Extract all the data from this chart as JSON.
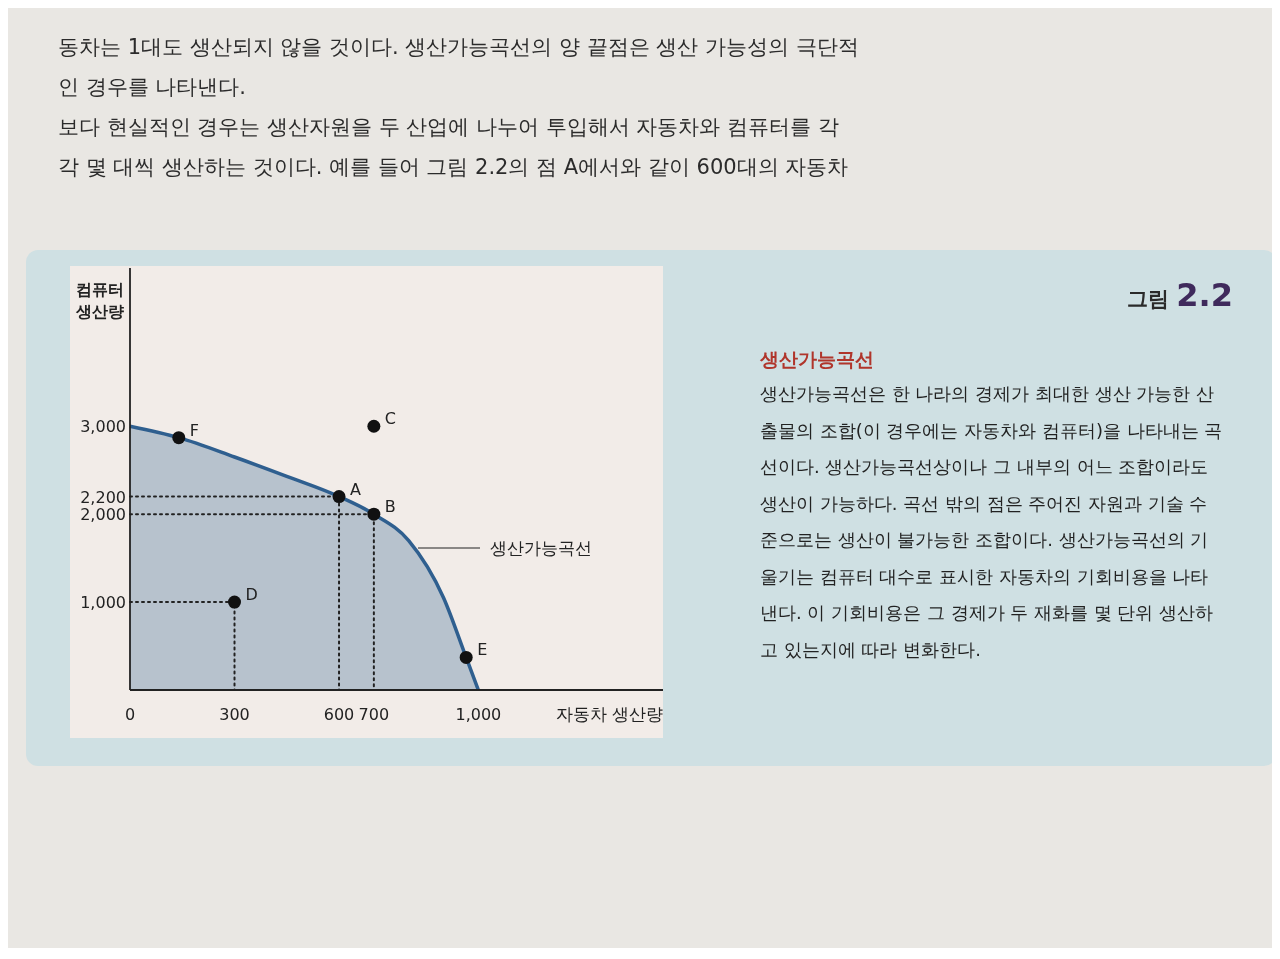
{
  "chart_data": {
    "type": "area",
    "title": "그림 2.2",
    "subtitle": "생산가능곡선",
    "xlabel": "자동차 생산량",
    "ylabel": "컴퓨터\n생산량",
    "xlim": [
      0,
      1530
    ],
    "ylim": [
      0,
      4800
    ],
    "xticks": [
      0,
      300,
      600,
      700,
      {
        "value": 1000,
        "label": "1,000"
      }
    ],
    "yticks": [
      {
        "value": 1000,
        "label": "1,000"
      },
      {
        "value": 2000,
        "label": "2,000"
      },
      {
        "value": 2200,
        "label": "2,200"
      },
      {
        "value": 3000,
        "label": "3,000"
      }
    ],
    "series": [
      {
        "color": "#2f5f8f",
        "x": [
          0,
          140,
          300,
          450,
          600,
          700,
          800,
          900,
          965,
          1000
        ],
        "values": [
          3000,
          2870,
          2650,
          2430,
          2200,
          2000,
          1700,
          1050,
          370,
          0
        ]
      },
      {
        "type": "line",
        "line_style": "dotted",
        "color": "#222222",
        "x": [
          0,
          600,
          600
        ],
        "values": [
          2200,
          2200,
          0
        ]
      },
      {
        "type": "line",
        "line_style": "dotted",
        "color": "#222222",
        "x": [
          0,
          700,
          700
        ],
        "values": [
          2000,
          2000,
          0
        ]
      },
      {
        "type": "line",
        "line_style": "dotted",
        "color": "#222222",
        "x": [
          0,
          300,
          300
        ],
        "values": [
          1000,
          1000,
          0
        ]
      },
      {
        "type": "scatter",
        "marker": "circle",
        "color": "#111111",
        "x": [
          140,
          600,
          700,
          700,
          300,
          965
        ],
        "values": [
          2870,
          2200,
          2000,
          3000,
          1000,
          370
        ]
      }
    ],
    "annotations": [
      "동차는 1대도 생산되지 않을 것이다. 생산가능곡선의 양 끝점은 생산 가능성의 극단적\n인 경우를 나타낸다.\n보다 현실적인 경우는 생산자원을 두 산업에 나누어 투입해서 자동차와 컴퓨터를 각\n각 몇 대씩 생산하는 것이다. 예를 들어 그림 2.2의 점 A에서와 같이 600대의 자동차",
      "생산가능곡선은 한 나라의 경제가 최대한 생산 가능한 산\n출물의 조합(이 경우에는 자동차와 컴퓨터)을 나타내는 곡\n선이다. 생산가능곡선상이나 그 내부의 어느 조합이라도\n생산이 가능하다. 곡선 밖의 점은 주어진 자원과 기술 수\n준으로는 생산이 불가능한 조합이다. 생산가능곡선의 기\n울기는 컴퓨터 대수로 표시한 자동차의 기회비용을 나타\n낸다. 이 기회비용은 그 경제가 두 재화를 몇 단위 생산하\n고 있는지에 따라 변화한다.",
      "생산가능곡선",
      {
        "text": "F",
        "x": 140,
        "y": 2870
      },
      {
        "text": "A",
        "x": 600,
        "y": 2200
      },
      {
        "text": "B",
        "x": 700,
        "y": 2000
      },
      {
        "text": "C",
        "x": 700,
        "y": 3000
      },
      {
        "text": "D",
        "x": 300,
        "y": 1000
      },
      {
        "text": "E",
        "x": 965,
        "y": 370
      }
    ]
  }
}
